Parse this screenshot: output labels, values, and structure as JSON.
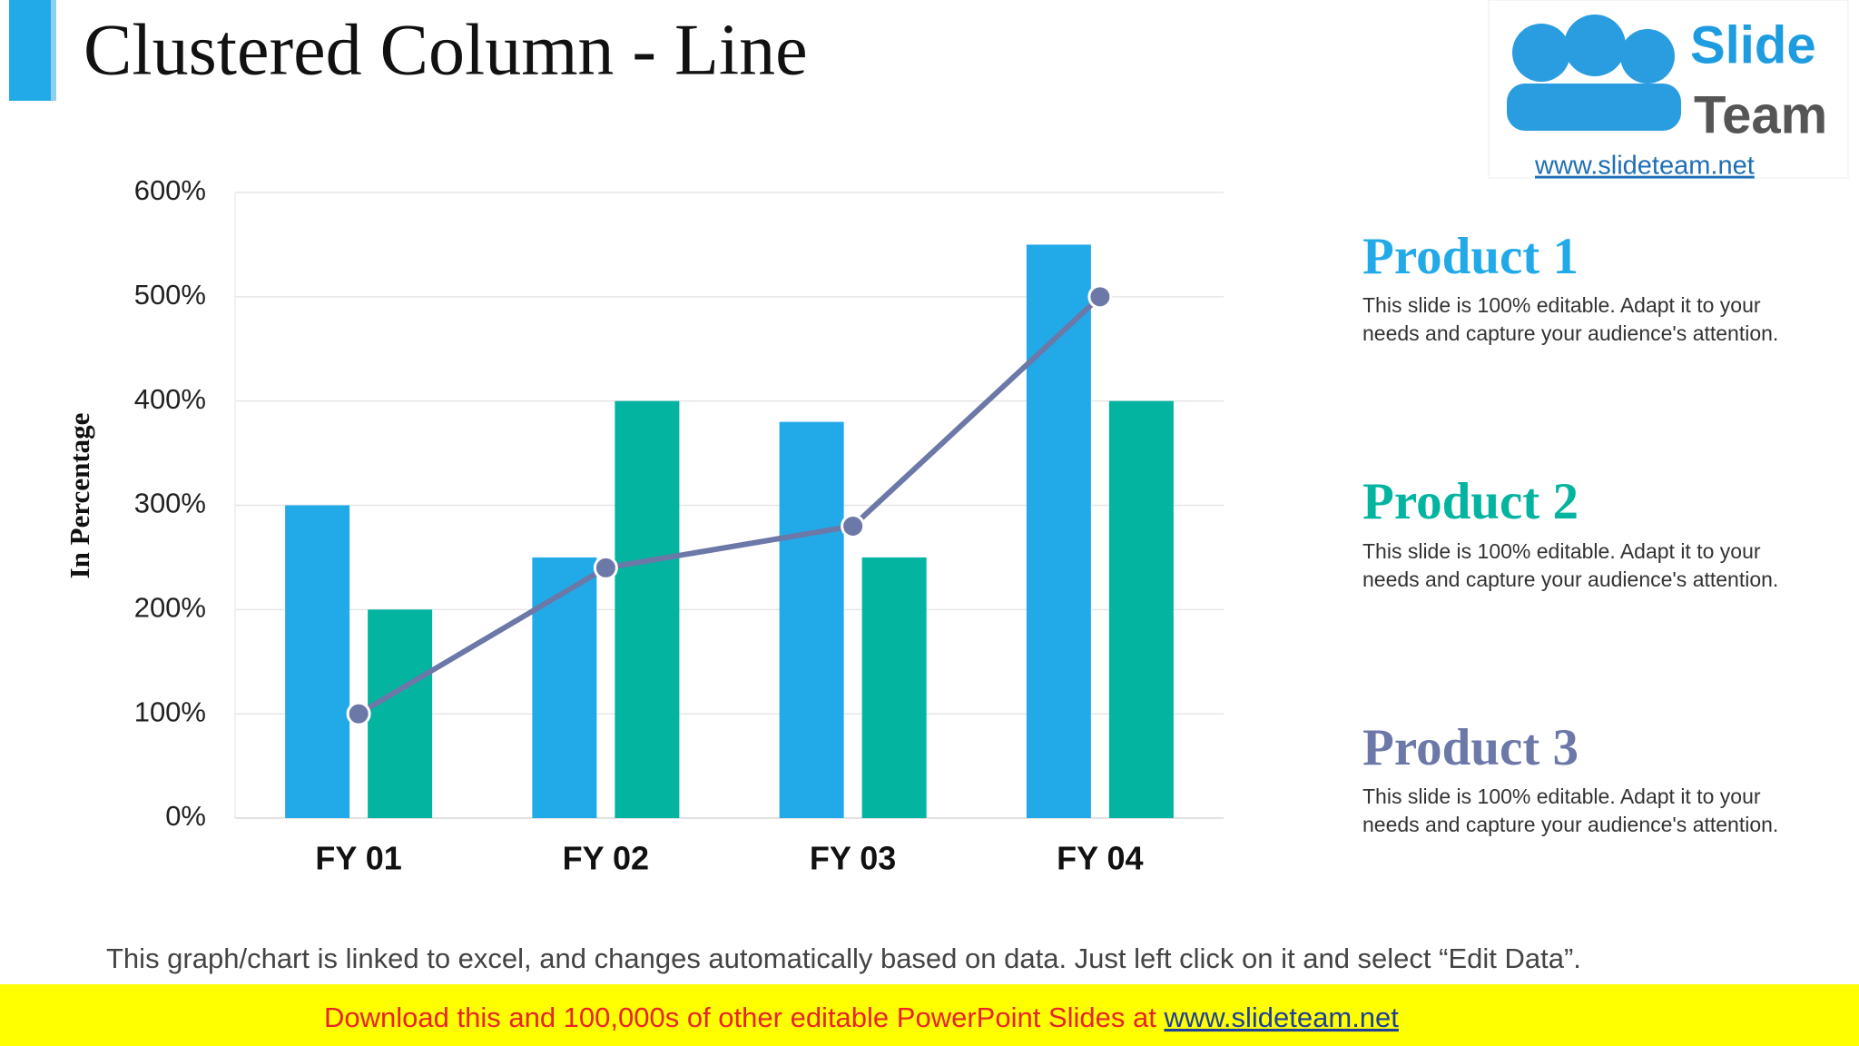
{
  "chart_data": {
    "type": "bar",
    "title": "Clustered Column - Line",
    "ylabel": "In Percentage",
    "categories": [
      "FY 01",
      "FY 02",
      "FY 03",
      "FY 04"
    ],
    "series": [
      {
        "name": "Product 1",
        "color": "#22aae8",
        "values": [
          300,
          250,
          380,
          550
        ]
      },
      {
        "name": "Product 2",
        "color": "#03b4a0",
        "values": [
          200,
          400,
          250,
          400
        ]
      },
      {
        "name": "Product 3",
        "color": "#6b78a8",
        "type": "line",
        "values": [
          100,
          240,
          280,
          500
        ]
      }
    ],
    "ylim": [
      0,
      600
    ],
    "yticks": [
      {
        "value": 0,
        "label": "0%"
      },
      {
        "value": 100,
        "label": "100%"
      },
      {
        "value": 200,
        "label": "200%"
      },
      {
        "value": 300,
        "label": "300%"
      },
      {
        "value": 400,
        "label": "400%"
      },
      {
        "value": 500,
        "label": "500%"
      },
      {
        "value": 600,
        "label": "600%"
      }
    ],
    "grid": true
  },
  "side_notes": [
    "This slide is 100% editable. Adapt it to your needs and capture your audience's attention.",
    "This slide is 100% editable. Adapt it to your needs and capture your audience's attention.",
    "This slide is 100% editable. Adapt it to your needs and capture your audience's attention."
  ],
  "logo": {
    "word1": "Slide",
    "word2": "Team",
    "url": "www.slideteam.net"
  },
  "footer": {
    "note": "This graph/chart is linked to excel, and changes automatically based on data. Just left click on it and select “Edit Data”.",
    "banner": "Download this and 100,000s of other editable PowerPoint Slides at",
    "banner_link": "www.slideteam.net"
  }
}
